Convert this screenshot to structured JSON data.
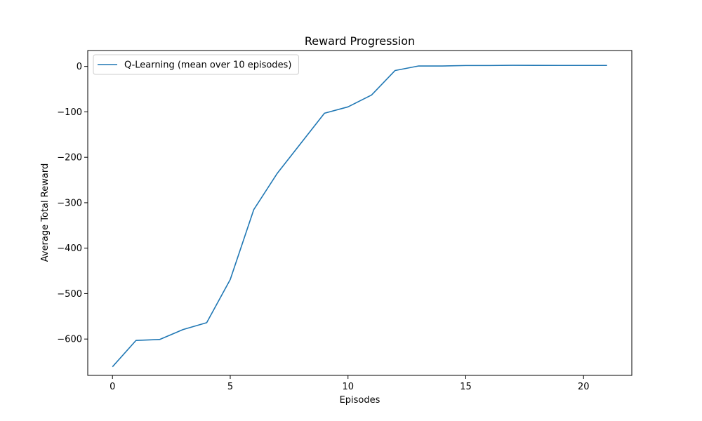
{
  "chart_data": {
    "type": "line",
    "title": "Reward Progression",
    "xlabel": "Episodes",
    "ylabel": "Average Total Reward",
    "xlim": [
      -1.05,
      22.05
    ],
    "ylim": [
      -680,
      35
    ],
    "xticks": [
      0,
      5,
      10,
      15,
      20
    ],
    "yticks": [
      -600,
      -500,
      -400,
      -300,
      -200,
      -100,
      0
    ],
    "grid": false,
    "legend_position": "top-left",
    "series": [
      {
        "name": "Q-Learning (mean over 10 episodes)",
        "color": "#1f77b4",
        "x": [
          0,
          1,
          2,
          3,
          4,
          5,
          6,
          7,
          8,
          9,
          10,
          11,
          12,
          13,
          14,
          15,
          16,
          17,
          18,
          19,
          20,
          21
        ],
        "y": [
          -661,
          -603,
          -601,
          -579,
          -564,
          -469,
          -315,
          -235,
          -169,
          -103,
          -89,
          -63,
          -9,
          1,
          1,
          2,
          2,
          2.5,
          2.3,
          2.2,
          2.2,
          2.2
        ]
      }
    ]
  }
}
